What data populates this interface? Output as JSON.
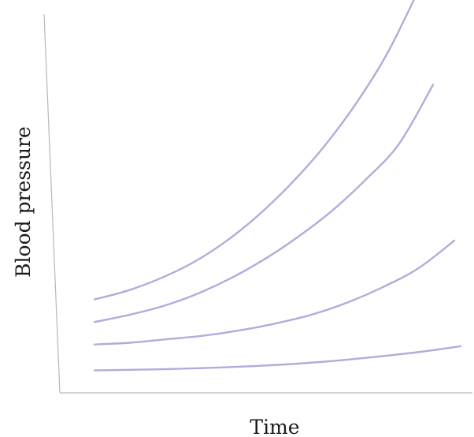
{
  "chart_data": {
    "type": "line",
    "title": "",
    "xlabel": "Time",
    "ylabel": "Blood pressure",
    "grid": false,
    "legend": "none",
    "axis_ticks": false,
    "xlim": [
      0,
      10
    ],
    "ylim": [
      0,
      10
    ],
    "line_color": "#b8a8dc",
    "series": [
      {
        "x": [
          0,
          1,
          2,
          3,
          4,
          5,
          6,
          7,
          8,
          9,
          10
        ],
        "values": [
          2.4,
          2.65,
          3.0,
          3.45,
          4.05,
          4.8,
          5.7,
          6.75,
          8.0,
          9.5,
          11.4
        ]
      },
      {
        "x": [
          0,
          1,
          2,
          3,
          4,
          5,
          6,
          7,
          8,
          9,
          10
        ],
        "values": [
          1.75,
          1.95,
          2.2,
          2.55,
          3.0,
          3.55,
          4.2,
          4.95,
          5.85,
          6.9,
          8.6
        ]
      },
      {
        "x": [
          0,
          1,
          2,
          3,
          4,
          5,
          6,
          7,
          8,
          9,
          10
        ],
        "values": [
          1.1,
          1.15,
          1.25,
          1.35,
          1.5,
          1.7,
          1.95,
          2.3,
          2.75,
          3.3,
          4.1
        ]
      },
      {
        "x": [
          0,
          1,
          2,
          3,
          4,
          5,
          6,
          7,
          8,
          9,
          10
        ],
        "values": [
          0.35,
          0.37,
          0.39,
          0.42,
          0.46,
          0.51,
          0.58,
          0.67,
          0.78,
          0.9,
          1.05
        ]
      }
    ]
  }
}
